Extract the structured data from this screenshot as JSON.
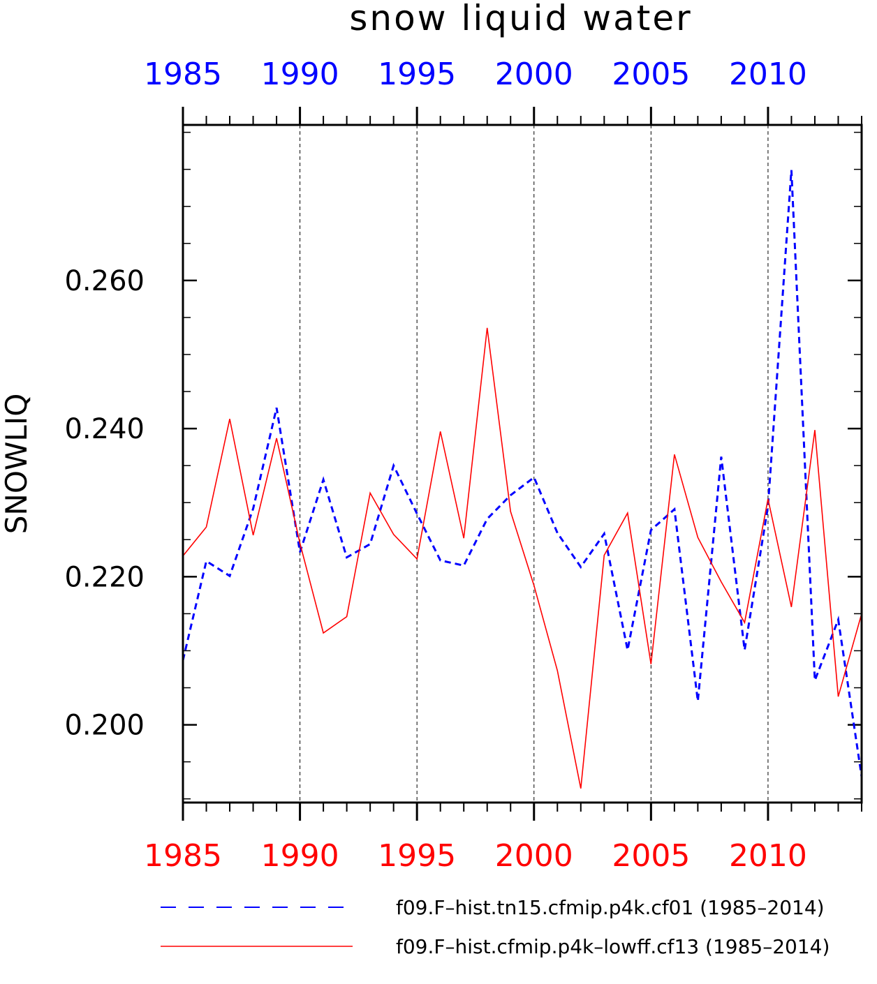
{
  "chart_data": {
    "type": "line",
    "title": "snow liquid water",
    "ylabel": "SNOWLIQ",
    "xlabel": "",
    "xlim": [
      1985,
      2014
    ],
    "ylim": [
      0.1895,
      0.281
    ],
    "xticks": [
      1985,
      1990,
      1995,
      2000,
      2005,
      2010
    ],
    "xtick_labels": [
      "1985",
      "1990",
      "1995",
      "2000",
      "2005",
      "2010"
    ],
    "yticks": [
      0.2,
      0.22,
      0.24,
      0.26
    ],
    "ytick_labels": [
      "0.200",
      "0.220",
      "0.240",
      "0.260"
    ],
    "grid": "vertical dashed at major x ticks",
    "x": [
      1985,
      1986,
      1987,
      1988,
      1989,
      1990,
      1991,
      1992,
      1993,
      1994,
      1995,
      1996,
      1997,
      1998,
      1999,
      2000,
      2001,
      2002,
      2003,
      2004,
      2005,
      2006,
      2007,
      2008,
      2009,
      2010,
      2011,
      2012,
      2013,
      2014
    ],
    "series": [
      {
        "name": "f09.F–hist.tn15.cfmip.p4k.cf01 (1985–2014)",
        "color": "#0000ff",
        "style": "dashed",
        "values": [
          0.2087,
          0.2221,
          0.2201,
          0.2292,
          0.2428,
          0.2233,
          0.2331,
          0.2226,
          0.2244,
          0.235,
          0.2285,
          0.2222,
          0.2215,
          0.2278,
          0.231,
          0.2334,
          0.2259,
          0.2213,
          0.2258,
          0.2101,
          0.2263,
          0.2291,
          0.2032,
          0.2362,
          0.2101,
          0.2295,
          0.2749,
          0.206,
          0.2142,
          0.193
        ]
      },
      {
        "name": "f09.F–hist.cfmip.p4k–lowff.cf13 (1985–2014)",
        "color": "#ff0000",
        "style": "solid",
        "values": [
          0.2228,
          0.2267,
          0.2413,
          0.2256,
          0.2387,
          0.2245,
          0.2124,
          0.2146,
          0.2313,
          0.2257,
          0.2224,
          0.2396,
          0.2252,
          0.2536,
          0.2288,
          0.2188,
          0.2073,
          0.1914,
          0.2229,
          0.2286,
          0.2082,
          0.2365,
          0.2253,
          0.2193,
          0.2138,
          0.2305,
          0.2159,
          0.2398,
          0.2038,
          0.215
        ]
      }
    ],
    "legend_position": "bottom"
  }
}
